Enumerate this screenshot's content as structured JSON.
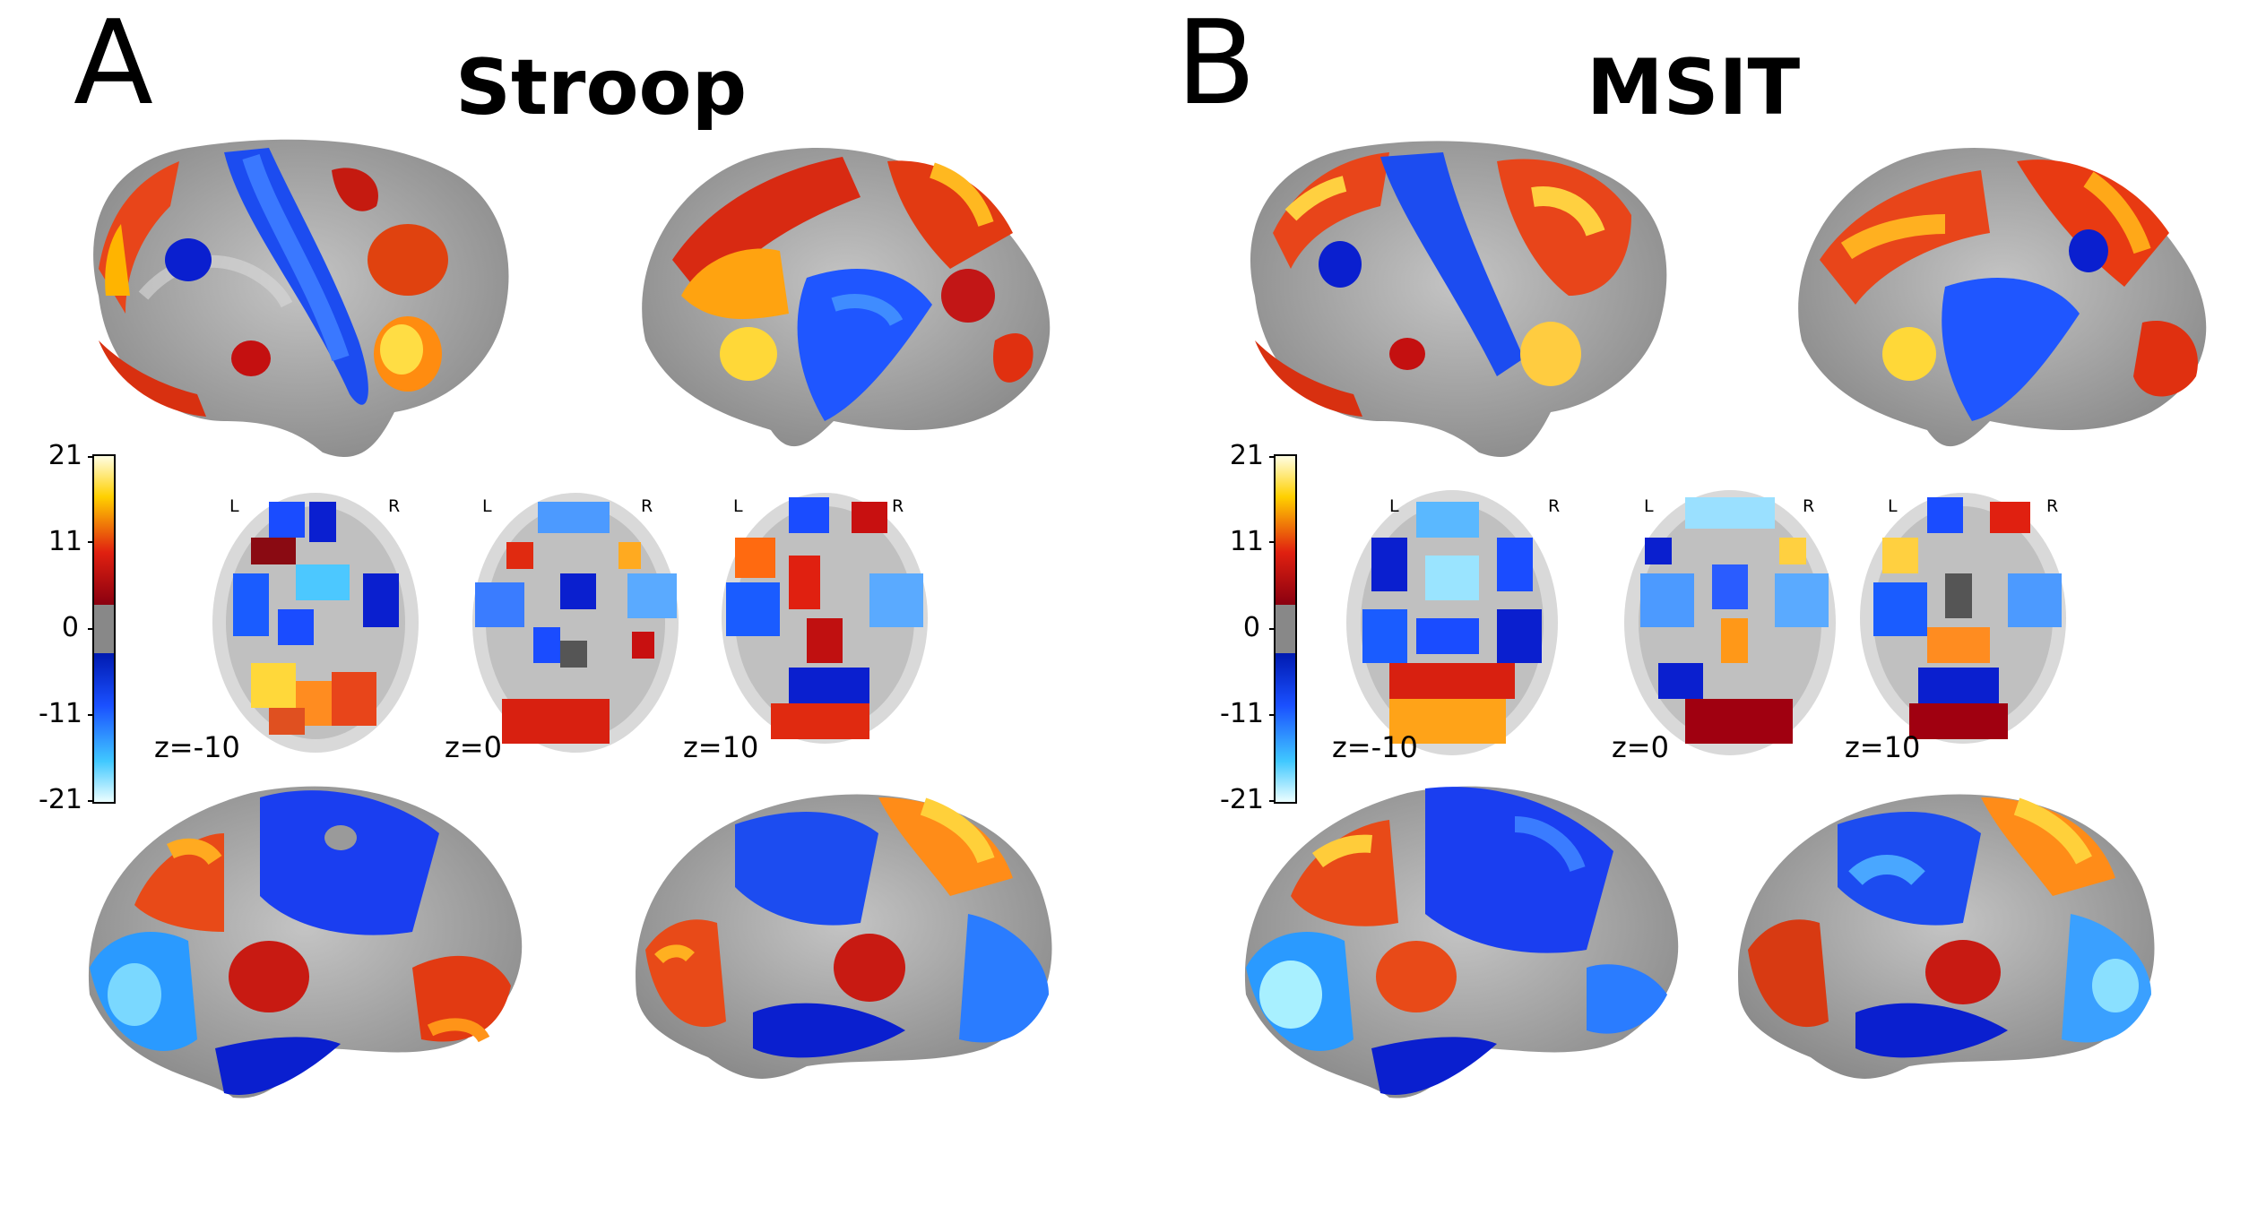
{
  "panels": [
    {
      "letter": "A",
      "title": "Stroop",
      "colorbar_ticks": [
        "21",
        "11",
        "0",
        "-11",
        "-21"
      ],
      "slice_labels": [
        "z=-10",
        "z=0",
        "z=10"
      ],
      "hemisphere_labels": {
        "left": "L",
        "right": "R"
      }
    },
    {
      "letter": "B",
      "title": "MSIT",
      "colorbar_ticks": [
        "21",
        "11",
        "0",
        "-11",
        "-21"
      ],
      "slice_labels": [
        "z=-10",
        "z=0",
        "z=10"
      ],
      "hemisphere_labels": {
        "left": "L",
        "right": "R"
      }
    }
  ],
  "colors": {
    "hot_max": "#ffffd0",
    "hot_mid": "#ffcc00",
    "hot": "#e83a10",
    "hot_dark": "#a00010",
    "cold_dark": "#0018d8",
    "cold": "#1a5cff",
    "cold_mid": "#49a7ff",
    "cold_max": "#aaf6ff",
    "zero": "#888888",
    "cortex": "#a8a8a8"
  }
}
